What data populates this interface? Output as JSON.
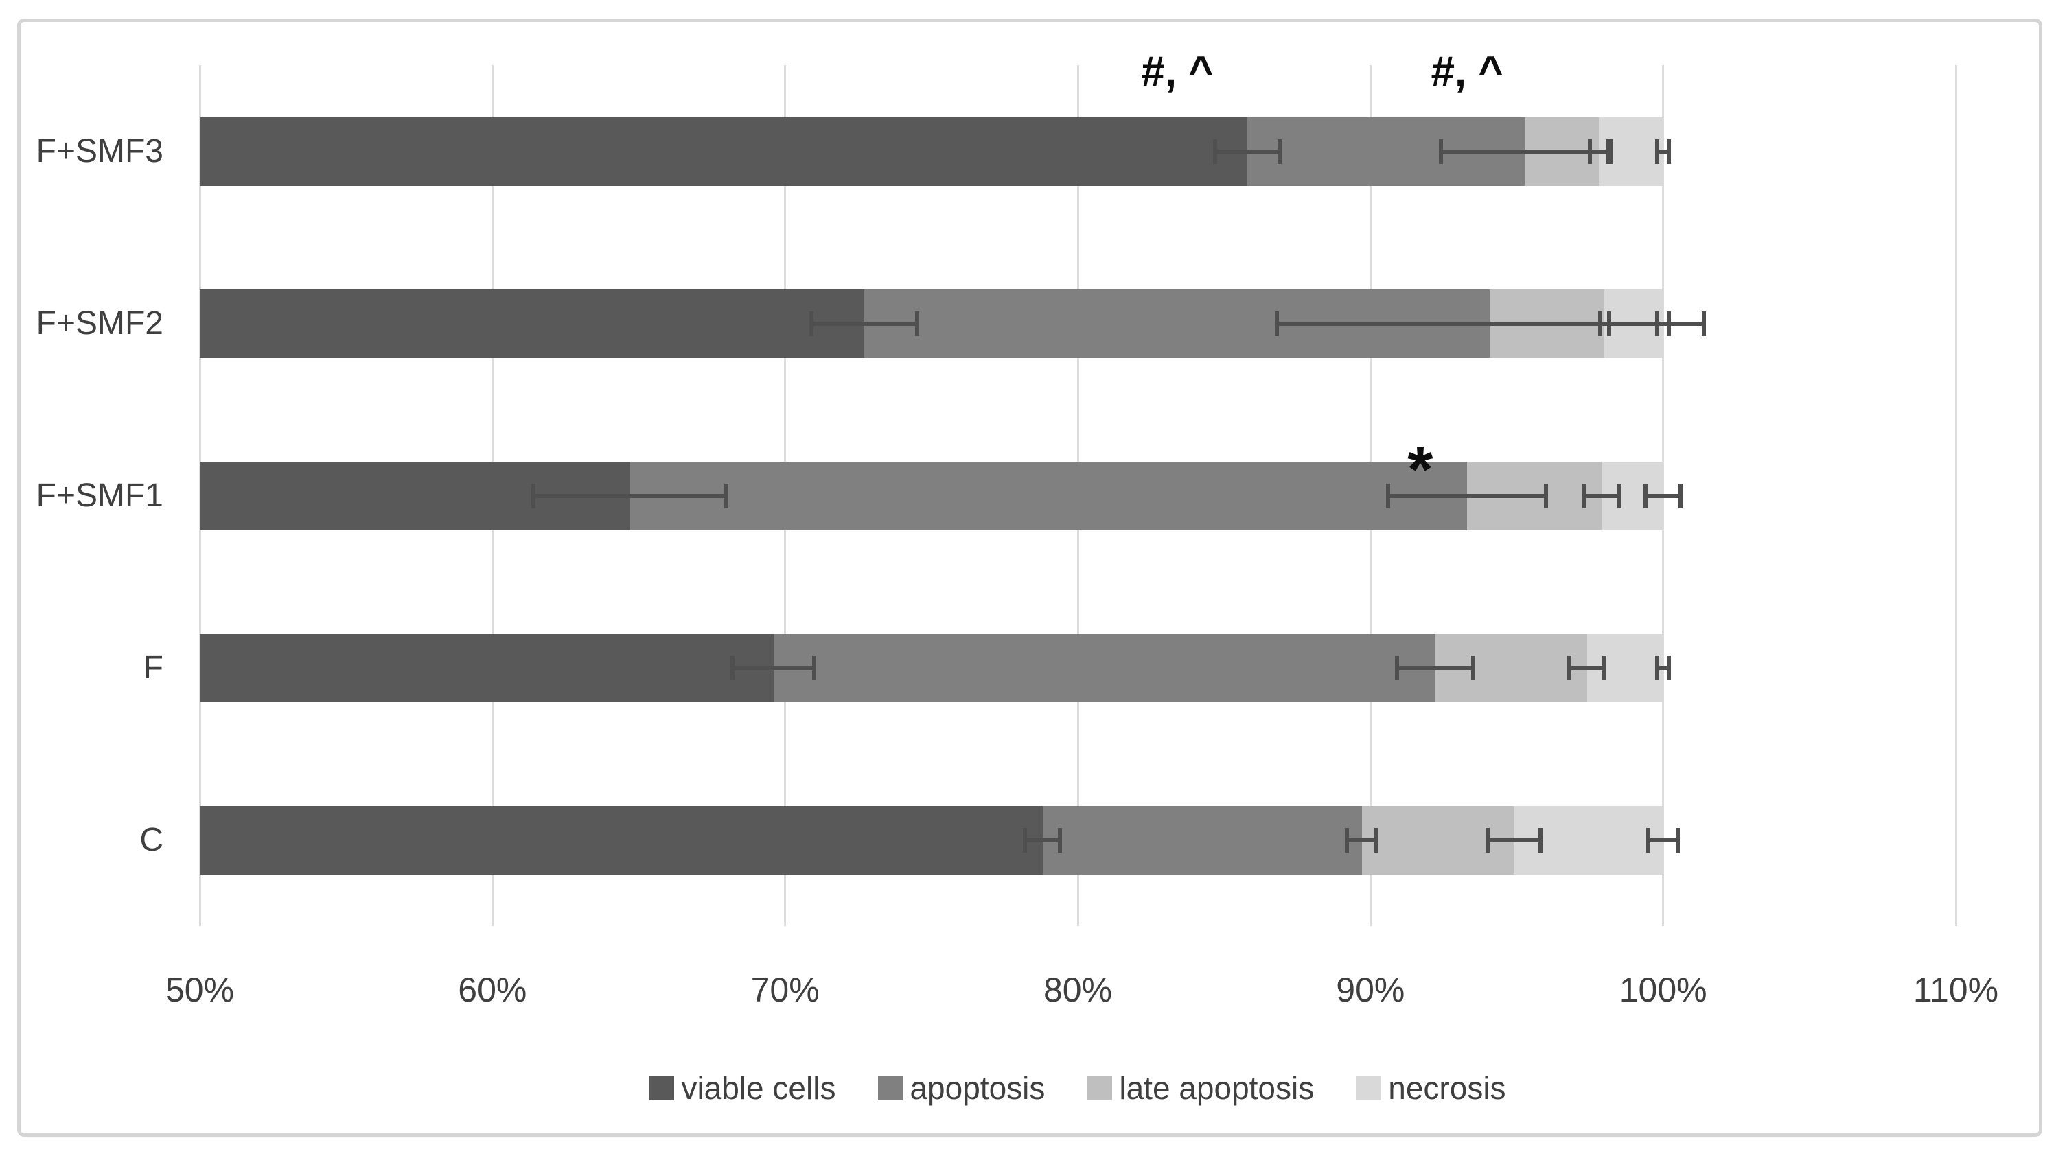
{
  "chart_data": {
    "type": "bar",
    "subtype": "horizontal-stacked",
    "title": "",
    "xlabel": "",
    "ylabel": "",
    "x_axis": {
      "min": 50,
      "max": 110,
      "tick_step": 10,
      "tick_labels": [
        "50%",
        "60%",
        "70%",
        "80%",
        "90%",
        "100%",
        "110%"
      ],
      "unit": "%",
      "grid": true
    },
    "categories_top_to_bottom": [
      "F+SMF3",
      "F+SMF2",
      "F+SMF1",
      "F",
      "C"
    ],
    "series": [
      {
        "name": "viable cells",
        "color": "#595959",
        "values": [
          85.8,
          72.7,
          64.7,
          69.6,
          78.8
        ]
      },
      {
        "name": "apoptosis",
        "color": "#808080",
        "values": [
          9.5,
          21.4,
          28.6,
          22.6,
          10.9
        ]
      },
      {
        "name": "late apoptosis",
        "color": "#bfbfbf",
        "values": [
          2.5,
          3.9,
          4.6,
          5.2,
          5.2
        ]
      },
      {
        "name": "necrosis",
        "color": "#d9d9d9",
        "values": [
          2.2,
          2.0,
          2.1,
          2.6,
          5.1
        ]
      }
    ],
    "error_bars_plus_minus": [
      {
        "category": "F+SMF3",
        "values": [
          1.1,
          2.9,
          0.3,
          0.2
        ]
      },
      {
        "category": "F+SMF2",
        "values": [
          1.8,
          7.3,
          0.15,
          0.2
        ]
      },
      {
        "category": "F+SMF1",
        "values": [
          3.3,
          2.7,
          0.6,
          0.6
        ]
      },
      {
        "category": "F",
        "values": [
          1.4,
          1.3,
          0.6,
          0.2
        ]
      },
      {
        "category": "C",
        "values": [
          0.6,
          0.5,
          0.9,
          0.5
        ]
      }
    ],
    "annotations": [
      {
        "text": "#, ^",
        "category": "F+SMF3",
        "x_value": 83.4
      },
      {
        "text": "#, ^",
        "category": "F+SMF3",
        "x_value": 93.3
      },
      {
        "text": "*",
        "category": "F+SMF1",
        "x_value": 91.7
      }
    ],
    "legend": {
      "position": "bottom",
      "entries": [
        "viable cells",
        "apoptosis",
        "late apoptosis",
        "necrosis"
      ]
    },
    "colors": {
      "background": "#ffffff",
      "frame_border": "#d5d5d5",
      "gridline": "#dcdcdc",
      "axis_text": "#3f3f3f",
      "error_bar": "#4f4f4f",
      "annotation_text": "#0d0d0d"
    }
  }
}
